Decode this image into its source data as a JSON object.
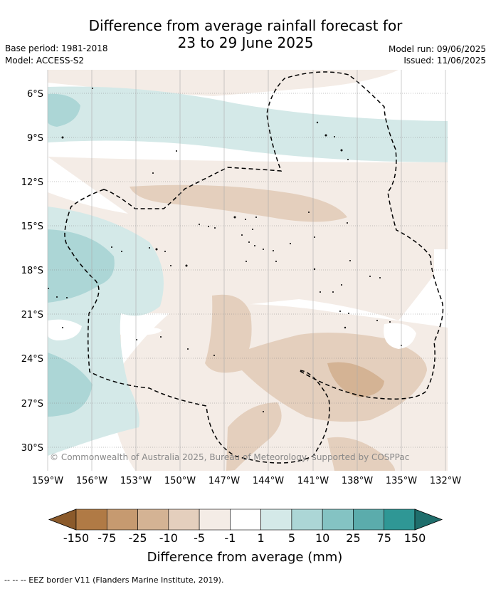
{
  "header": {
    "title_line1": "Difference from average rainfall forecast for",
    "title_line2": "23 to 29 June 2025",
    "base_period": "Base period: 1981-2018",
    "model": "Model: ACCESS-S2",
    "model_run": "Model run: 09/06/2025",
    "issued": "Issued: 11/06/2025"
  },
  "map": {
    "lat_labels": [
      "6°S",
      "9°S",
      "12°S",
      "15°S",
      "18°S",
      "21°S",
      "24°S",
      "27°S",
      "30°S"
    ],
    "lon_labels": [
      "159°W",
      "156°W",
      "153°W",
      "150°W",
      "147°W",
      "144°W",
      "141°W",
      "138°W",
      "135°W",
      "132°W"
    ],
    "copyright": "© Commonwealth of Australia 2025, Bureau of Meteorology, supported by COSPPac"
  },
  "colorbar": {
    "tick_labels": [
      "-150",
      "-75",
      "-25",
      "-10",
      "-5",
      "-1",
      "1",
      "5",
      "10",
      "25",
      "75",
      "150"
    ],
    "colors": [
      "#8b5a2b",
      "#b07a45",
      "#c69a70",
      "#d4b394",
      "#e4cfbd",
      "#f4ece6",
      "#ffffff",
      "#d4e9e8",
      "#acd6d6",
      "#84c3c3",
      "#5bacac",
      "#2f9795",
      "#1f6e6c"
    ],
    "title": "Difference from average (mm)"
  },
  "footer": {
    "eez_legend": "-- -- -- EEZ border V11 (Flanders Marine Institute, 2019)."
  }
}
